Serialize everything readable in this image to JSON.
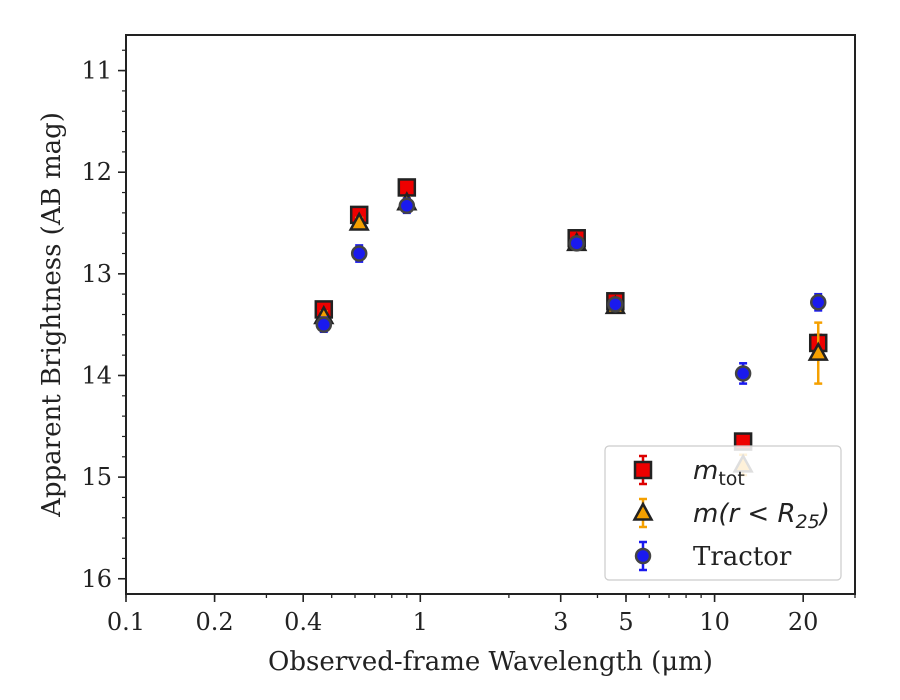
{
  "chart_data": {
    "type": "scatter",
    "xlabel": "Observed-frame Wavelength (μm)",
    "ylabel": "Apparent Brightness (AB mag)",
    "x_scale": "log",
    "xlim": [
      0.1,
      30
    ],
    "ylim": [
      16.15,
      10.65
    ],
    "y_inverted": true,
    "x_ticks": [
      0.1,
      0.2,
      0.4,
      1,
      3,
      5,
      10,
      20
    ],
    "x_tick_labels": [
      "0.1",
      "0.2",
      "0.4",
      "1",
      "3",
      "5",
      "10",
      "20"
    ],
    "y_ticks": [
      11,
      12,
      13,
      14,
      15,
      16
    ],
    "y_tick_labels": [
      "11",
      "12",
      "13",
      "14",
      "15",
      "16"
    ],
    "grid": false,
    "legend_position": "bottom-right",
    "series": [
      {
        "name": "m_tot",
        "marker": "square",
        "fill": "#ee0000",
        "edge": "#222222",
        "errcolor": "#dd0000",
        "points": [
          {
            "x": 0.47,
            "y": 13.35,
            "err": 0.06
          },
          {
            "x": 0.62,
            "y": 12.42,
            "err": 0.05
          },
          {
            "x": 0.9,
            "y": 12.15,
            "err": 0.05
          },
          {
            "x": 3.4,
            "y": 12.65,
            "err": 0.05
          },
          {
            "x": 4.6,
            "y": 13.27,
            "err": 0.05
          },
          {
            "x": 12.5,
            "y": 14.65,
            "err": 0.05
          },
          {
            "x": 22.5,
            "y": 13.68,
            "err": 0.08
          }
        ]
      },
      {
        "name": "m(r < R25)",
        "marker": "triangle",
        "fill": "#f5a000",
        "edge": "#222222",
        "errcolor": "#f5a000",
        "points": [
          {
            "x": 0.47,
            "y": 13.42,
            "err": 0.05
          },
          {
            "x": 0.62,
            "y": 12.5,
            "err": 0.05
          },
          {
            "x": 0.9,
            "y": 12.3,
            "err": 0.05
          },
          {
            "x": 3.4,
            "y": 12.7,
            "err": 0.05
          },
          {
            "x": 4.6,
            "y": 13.32,
            "err": 0.05
          },
          {
            "x": 12.5,
            "y": 14.88,
            "err": 0.1
          },
          {
            "x": 22.5,
            "y": 13.78,
            "err": 0.3
          }
        ]
      },
      {
        "name": "Tractor",
        "marker": "circle",
        "fill": "#1a1aee",
        "edge": "#444444",
        "errcolor": "#1a1aee",
        "points": [
          {
            "x": 0.47,
            "y": 13.5,
            "err": 0.07
          },
          {
            "x": 0.62,
            "y": 12.8,
            "err": 0.08
          },
          {
            "x": 0.9,
            "y": 12.33,
            "err": 0.07
          },
          {
            "x": 3.4,
            "y": 12.7,
            "err": 0.05
          },
          {
            "x": 4.6,
            "y": 13.3,
            "err": 0.05
          },
          {
            "x": 12.5,
            "y": 13.98,
            "err": 0.1
          },
          {
            "x": 22.5,
            "y": 13.28,
            "err": 0.08
          }
        ]
      }
    ],
    "legend": [
      {
        "series": 0,
        "label_base": "m",
        "label_sub": "tot",
        "label_tail": ""
      },
      {
        "series": 1,
        "label_base": "m(r < R",
        "label_sub": "25",
        "label_tail": ")"
      },
      {
        "series": 2,
        "label_base": "Tractor",
        "label_sub": "",
        "label_tail": ""
      }
    ]
  }
}
